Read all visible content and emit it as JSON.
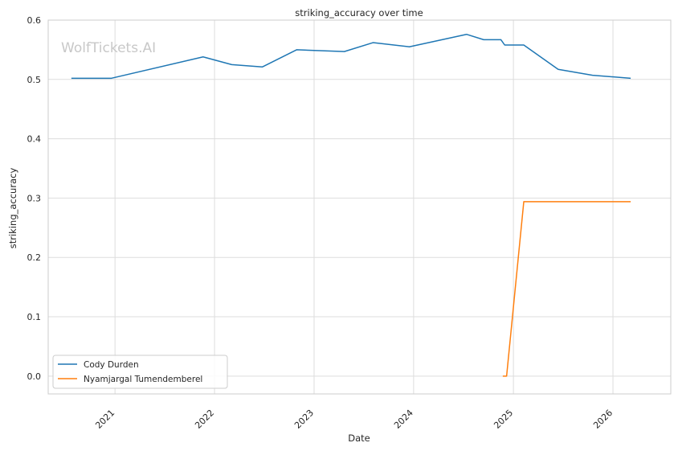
{
  "chart_data": {
    "type": "line",
    "title": "striking_accuracy over time",
    "xlabel": "Date",
    "ylabel": "striking_accuracy",
    "watermark": "WolfTickets.AI",
    "x_ticks": [
      "2021",
      "2022",
      "2023",
      "2024",
      "2025",
      "2026"
    ],
    "y_ticks": [
      "0.0",
      "0.1",
      "0.2",
      "0.3",
      "0.4",
      "0.5",
      "0.6"
    ],
    "xlim": [
      "2020-05-01",
      "2026-08-01"
    ],
    "ylim": [
      -0.03,
      0.6
    ],
    "grid": true,
    "legend_position": "lower-left",
    "series": [
      {
        "name": "Cody Durden",
        "color": "#1f77b4",
        "points": [
          [
            "2020-07-25",
            0.502
          ],
          [
            "2020-12-19",
            0.502
          ],
          [
            "2021-11-20",
            0.538
          ],
          [
            "2022-03-05",
            0.525
          ],
          [
            "2022-06-25",
            0.521
          ],
          [
            "2022-10-29",
            0.55
          ],
          [
            "2023-04-22",
            0.547
          ],
          [
            "2023-08-05",
            0.562
          ],
          [
            "2023-12-16",
            0.555
          ],
          [
            "2024-07-13",
            0.576
          ],
          [
            "2024-09-14",
            0.567
          ],
          [
            "2024-11-16",
            0.567
          ],
          [
            "2024-11-30",
            0.558
          ],
          [
            "2025-02-08",
            0.558
          ],
          [
            "2025-06-14",
            0.517
          ],
          [
            "2025-10-18",
            0.507
          ],
          [
            "2026-03-07",
            0.502
          ]
        ]
      },
      {
        "name": "Nyamjargal Tumendemberel",
        "color": "#ff7f0e",
        "points": [
          [
            "2024-11-23",
            0.0
          ],
          [
            "2024-12-07",
            0.0
          ],
          [
            "2025-02-08",
            0.294
          ],
          [
            "2026-03-07",
            0.294
          ]
        ]
      }
    ]
  }
}
